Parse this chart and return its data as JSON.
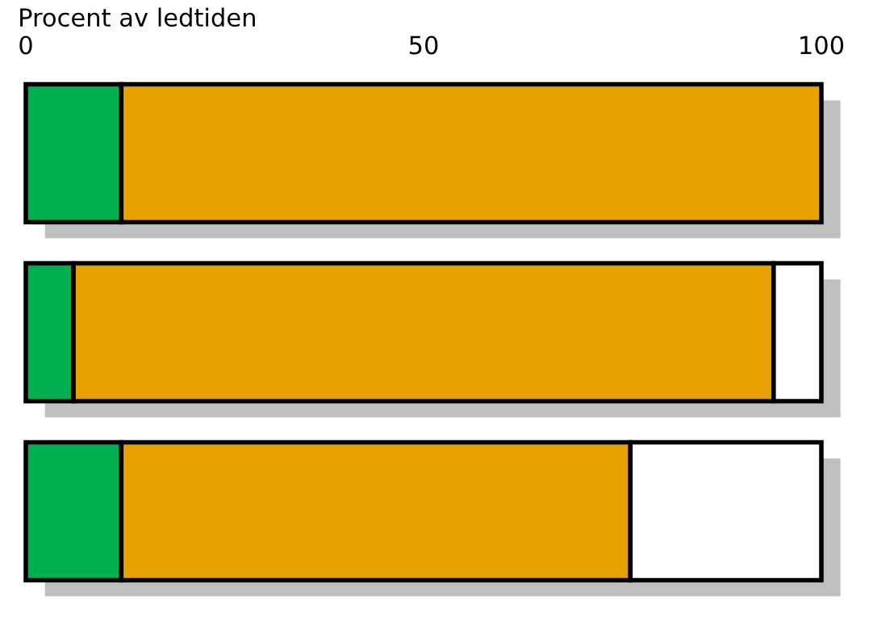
{
  "chart_data": {
    "type": "bar",
    "orientation": "horizontal",
    "stacked": true,
    "xlabel": "Procent av ledtiden",
    "categories": [
      null,
      null,
      null
    ],
    "series": [
      {
        "color": "#00b050",
        "values": [
          12,
          6,
          12
        ]
      },
      {
        "color": "#e8a200",
        "values": [
          88,
          88,
          64
        ]
      },
      {
        "color": "#ffffff",
        "values": [
          null,
          6,
          24
        ]
      }
    ],
    "xlim": [
      0,
      100
    ],
    "xticks": [
      0,
      50,
      100
    ],
    "tick_labels": "x",
    "grid": false,
    "legend": false
  }
}
